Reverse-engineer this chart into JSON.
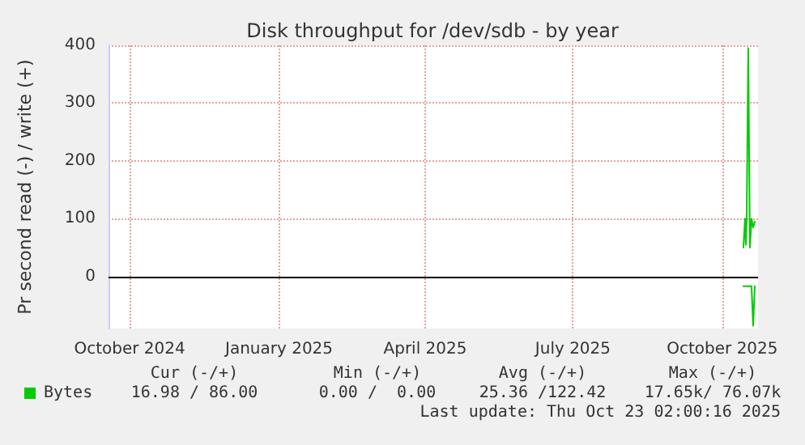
{
  "chart_data": {
    "type": "line",
    "title": "Disk throughput for /dev/sdb - by year",
    "ylabel": "Pr second read (-) / write (+)",
    "xlim": [
      "2024-09-18",
      "2025-10-23"
    ],
    "xticks": [
      {
        "value": "2024-10-01",
        "label": "October 2024"
      },
      {
        "value": "2025-01-01",
        "label": "January 2025"
      },
      {
        "value": "2025-04-01",
        "label": "April 2025"
      },
      {
        "value": "2025-07-01",
        "label": "July 2025"
      },
      {
        "value": "2025-10-01",
        "label": "October 2025"
      }
    ],
    "ylim": [
      -90,
      400
    ],
    "yticks": [
      0,
      100,
      200,
      300,
      400
    ],
    "grid": true,
    "legend": "bottom left",
    "marker": "none",
    "line_style": "solid",
    "series": [
      {
        "name": "Bytes",
        "color": "#00cc00",
        "x": [
          "2025-10-14",
          "2025-10-15",
          "2025-10-15T12:00",
          "2025-10-16",
          "2025-10-17",
          "2025-10-18",
          "2025-10-19",
          "2025-10-20",
          "2025-10-21"
        ],
        "values": [
          50,
          100,
          55,
          100,
          395,
          50,
          100,
          85,
          95
        ]
      },
      {
        "color": "#00cc00",
        "x": [
          "2025-10-14",
          "2025-10-19",
          "2025-10-20",
          "2025-10-21"
        ],
        "values": [
          -17,
          -17,
          -85,
          -17
        ]
      }
    ],
    "ref_lines": [
      {
        "axis": "y",
        "value": 0,
        "color": "#000000"
      }
    ],
    "annotations": [
      "Cur (-/+)",
      "Min (-/+)",
      "Avg (-/+)",
      "Max (-/+)",
      "16.98 / 86.00",
      "0.00 /  0.00",
      "25.36 /122.42",
      "17.65k/ 76.07k",
      "Last update: Thu Oct 23 02:00:16 2025"
    ]
  }
}
